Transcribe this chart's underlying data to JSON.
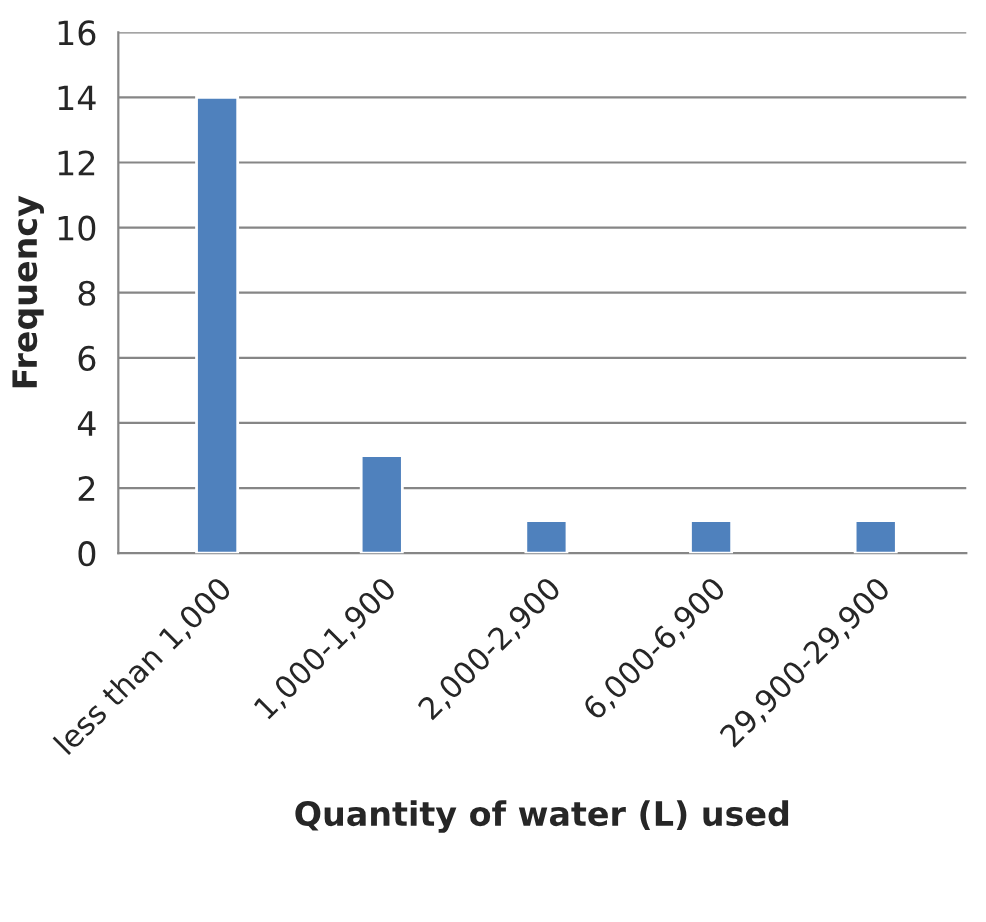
{
  "chart_data": {
    "type": "bar",
    "xlabel": "Quantity of water (L) used",
    "ylabel": "Frequency",
    "categories": [
      "less than 1,000",
      "1,000-1,900",
      "2,000-2,900",
      "6,000-6,900",
      "29,900-29,900"
    ],
    "values": [
      14,
      3,
      1,
      1,
      1
    ],
    "color": "#4f81bd",
    "ylim": [
      0,
      16
    ],
    "yticks": [
      0,
      2,
      4,
      6,
      8,
      10,
      12,
      14,
      16
    ],
    "grid": "y"
  }
}
